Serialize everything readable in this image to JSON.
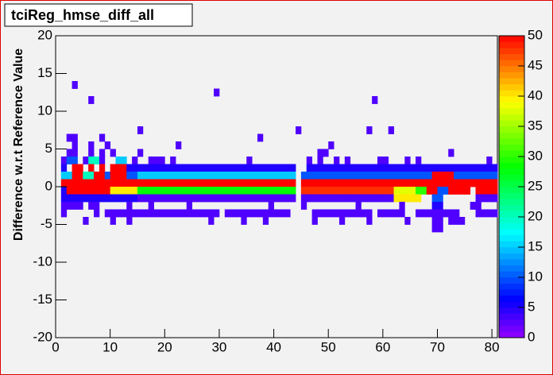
{
  "chart_data": {
    "type": "heatmap",
    "title": "tciReg_hmse_diff_all",
    "y_label": "Difference w.r.t Reference Value",
    "xlim": [
      0,
      81
    ],
    "xticks": [
      0,
      10,
      20,
      30,
      40,
      50,
      60,
      70,
      80
    ],
    "ylim": [
      -20,
      20
    ],
    "yticks": [
      -20,
      -15,
      -10,
      -5,
      0,
      5,
      10,
      15,
      20
    ],
    "zlim": [
      0,
      50
    ],
    "zticks": [
      0,
      5,
      10,
      15,
      20,
      25,
      30,
      35,
      40,
      45,
      50
    ],
    "spans": [
      [
        13,
        3,
        4,
        3
      ],
      [
        12,
        29,
        30,
        3
      ],
      [
        11,
        6,
        7,
        3
      ],
      [
        11,
        58,
        59,
        3
      ],
      [
        7,
        15,
        16,
        3
      ],
      [
        7,
        44,
        45,
        3
      ],
      [
        7,
        57,
        58,
        3
      ],
      [
        7,
        61,
        62,
        3
      ],
      [
        6,
        2,
        4,
        3
      ],
      [
        6,
        8,
        9,
        3
      ],
      [
        6,
        37,
        38,
        3
      ],
      [
        5,
        3,
        4,
        3
      ],
      [
        5,
        6,
        7,
        3
      ],
      [
        5,
        9,
        10,
        3
      ],
      [
        5,
        22,
        23,
        3
      ],
      [
        5,
        50,
        51,
        3
      ],
      [
        4,
        2,
        4,
        3
      ],
      [
        4,
        6,
        7,
        3
      ],
      [
        4,
        8,
        9,
        3
      ],
      [
        4,
        10,
        11,
        3
      ],
      [
        4,
        15,
        16,
        3
      ],
      [
        4,
        48,
        50,
        3
      ],
      [
        4,
        72,
        73,
        3
      ],
      [
        3,
        1,
        2,
        3
      ],
      [
        3,
        2,
        4,
        10
      ],
      [
        3,
        5,
        6,
        3
      ],
      [
        3,
        6,
        8,
        20
      ],
      [
        3,
        8,
        9,
        3
      ],
      [
        3,
        11,
        13,
        15
      ],
      [
        3,
        14,
        15,
        3
      ],
      [
        3,
        17,
        20,
        3
      ],
      [
        3,
        21,
        22,
        3
      ],
      [
        3,
        35,
        36,
        3
      ],
      [
        3,
        46,
        47,
        3
      ],
      [
        3,
        48,
        49,
        3
      ],
      [
        3,
        51,
        52,
        3
      ],
      [
        3,
        53,
        54,
        3
      ],
      [
        3,
        59,
        61,
        3
      ],
      [
        3,
        64,
        65,
        3
      ],
      [
        3,
        66,
        67,
        3
      ],
      [
        3,
        79,
        80,
        3
      ],
      [
        2,
        1,
        2,
        5
      ],
      [
        2,
        3,
        5,
        50
      ],
      [
        2,
        6,
        7,
        50
      ],
      [
        2,
        8,
        9,
        50
      ],
      [
        2,
        10,
        13,
        50
      ],
      [
        2,
        13,
        16,
        5
      ],
      [
        2,
        16,
        44,
        5
      ],
      [
        2,
        46,
        81,
        5
      ],
      [
        1,
        1,
        3,
        15
      ],
      [
        1,
        3,
        5,
        50
      ],
      [
        1,
        5,
        7,
        20
      ],
      [
        1,
        7,
        9,
        50
      ],
      [
        1,
        9,
        10,
        10
      ],
      [
        1,
        10,
        13,
        50
      ],
      [
        1,
        13,
        15,
        10
      ],
      [
        1,
        15,
        44,
        15
      ],
      [
        1,
        45,
        69,
        10
      ],
      [
        1,
        69,
        73,
        50
      ],
      [
        1,
        73,
        81,
        10
      ],
      [
        0,
        1,
        44,
        50
      ],
      [
        0,
        45,
        81,
        50
      ],
      [
        -1,
        1,
        2,
        5
      ],
      [
        -1,
        2,
        10,
        50
      ],
      [
        -1,
        10,
        15,
        40
      ],
      [
        -1,
        15,
        44,
        28
      ],
      [
        -1,
        45,
        62,
        48
      ],
      [
        -1,
        62,
        66,
        38
      ],
      [
        -1,
        66,
        68,
        30
      ],
      [
        -1,
        68,
        70,
        50
      ],
      [
        -1,
        70,
        72,
        10
      ],
      [
        -1,
        72,
        76,
        50
      ],
      [
        -1,
        77,
        81,
        50
      ],
      [
        -2,
        1,
        15,
        5
      ],
      [
        -2,
        15,
        44,
        3
      ],
      [
        -2,
        45,
        62,
        3
      ],
      [
        -2,
        62,
        67,
        40
      ],
      [
        -2,
        69,
        71,
        10
      ],
      [
        -2,
        77,
        81,
        3
      ],
      [
        -3,
        1,
        5,
        3
      ],
      [
        -3,
        6,
        8,
        3
      ],
      [
        -3,
        13,
        14,
        3
      ],
      [
        -3,
        17,
        18,
        3
      ],
      [
        -3,
        24,
        25,
        3
      ],
      [
        -3,
        39,
        40,
        3
      ],
      [
        -3,
        45,
        46,
        3
      ],
      [
        -3,
        55,
        56,
        3
      ],
      [
        -3,
        63,
        64,
        3
      ],
      [
        -3,
        69,
        71,
        5
      ],
      [
        -3,
        76,
        78,
        3
      ],
      [
        -4,
        1,
        2,
        3
      ],
      [
        -4,
        7,
        8,
        3
      ],
      [
        -4,
        9,
        30,
        3
      ],
      [
        -4,
        31,
        43,
        3
      ],
      [
        -4,
        47,
        58,
        3
      ],
      [
        -4,
        59,
        64,
        3
      ],
      [
        -4,
        66,
        74,
        3
      ],
      [
        -4,
        77,
        81,
        3
      ],
      [
        -5,
        5,
        6,
        3
      ],
      [
        -5,
        10,
        11,
        3
      ],
      [
        -5,
        13,
        14,
        3
      ],
      [
        -5,
        28,
        29,
        3
      ],
      [
        -5,
        34,
        35,
        3
      ],
      [
        -5,
        38,
        39,
        3
      ],
      [
        -5,
        47,
        48,
        3
      ],
      [
        -5,
        52,
        53,
        3
      ],
      [
        -5,
        57,
        58,
        3
      ],
      [
        -5,
        64,
        65,
        3
      ],
      [
        -5,
        69,
        71,
        3
      ],
      [
        -5,
        72,
        75,
        3
      ],
      [
        -6,
        69,
        71,
        3
      ]
    ]
  }
}
